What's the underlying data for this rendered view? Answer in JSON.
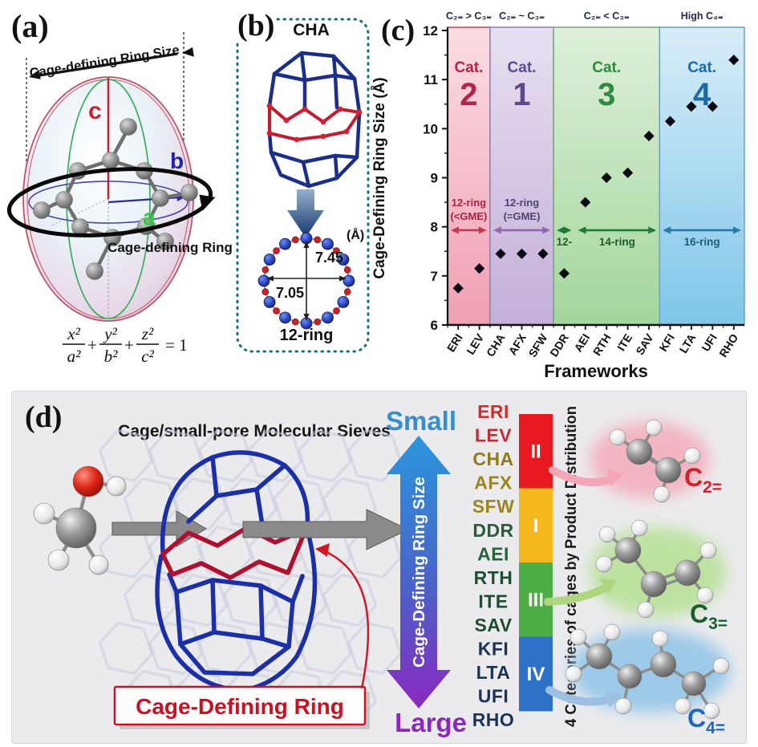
{
  "panel_a": {
    "label": "(a)",
    "size_caption": "Cage-defining Ring Size",
    "ring_caption": "Cage-defining Ring",
    "axis_a": "a",
    "axis_b": "b",
    "axis_c": "c",
    "equation": {
      "f1n": "x²",
      "f1d": "a²",
      "plus1": "+",
      "f2n": "y²",
      "f2d": "b²",
      "plus2": "+",
      "f3n": "z²",
      "f3d": "c²",
      "rhs": "= 1"
    }
  },
  "panel_b": {
    "label": "(b)",
    "cage_name": "CHA",
    "unit": "(Å)",
    "vertical_size": "7.45",
    "horizontal_size": "7.05",
    "ring_caption": "12-ring"
  },
  "panel_c": {
    "label": "(c)"
  },
  "chart_data": {
    "type": "scatter",
    "marker": "diamond",
    "xlabel": "Frameworks",
    "ylabel": "Cage-Defining Ring Size (Å)",
    "ylim": [
      6,
      12
    ],
    "ytick_step": 1,
    "categories": [
      "ERI",
      "LEV",
      "CHA",
      "AFX",
      "SFW",
      "DDR",
      "AEI",
      "RTH",
      "ITE",
      "SAV",
      "KFI",
      "LTA",
      "UFI",
      "RHO"
    ],
    "values": [
      6.75,
      7.15,
      7.45,
      7.45,
      7.45,
      7.05,
      8.5,
      9.0,
      9.1,
      9.85,
      10.15,
      10.45,
      10.45,
      11.4
    ],
    "bands": [
      {
        "cats": [
          0,
          2
        ],
        "condition": "C₂₌ > C₃₌",
        "cat_word": "Cat.",
        "cat_num": "2",
        "label_color": "#b52347",
        "fill_top": "#fbdde3",
        "fill_bottom": "#f09fb2",
        "border": "#c04868"
      },
      {
        "cats": [
          2,
          5
        ],
        "condition": "C₂₌ ~ C₃₌",
        "cat_word": "Cat.",
        "cat_num": "1",
        "label_color": "#5c4a8e",
        "fill_top": "#e7e0f1",
        "fill_bottom": "#c4afd8",
        "border": "#9383b2"
      },
      {
        "cats": [
          5,
          10
        ],
        "condition": "C₂₌ < C₃₌",
        "cat_word": "Cat.",
        "cat_num": "3",
        "label_color": "#2e8b3f",
        "fill_top": "#def0da",
        "fill_bottom": "#a2d69c",
        "border": "#78ab7c"
      },
      {
        "cats": [
          10,
          14
        ],
        "condition": "High C₄₌",
        "cat_word": "Cat.",
        "cat_num": "4",
        "label_color": "#1b6aab",
        "fill_top": "#d7edf8",
        "fill_bottom": "#7fc6e9",
        "border": "#72a2c2"
      }
    ],
    "ring_spans": [
      {
        "text": "12-ring",
        "text2": "(<GME)",
        "cats": [
          0,
          2
        ],
        "arrow_color": "#c23a55",
        "text_color": "#a82340",
        "label_side": "above"
      },
      {
        "text": "12-ring",
        "text2": "(=GME)",
        "cats": [
          2,
          5
        ],
        "arrow_color": "#8f6ab0",
        "text_color": "#4a4470",
        "label_side": "above"
      },
      {
        "text": "12-",
        "cats": [
          5,
          6
        ],
        "arrow_color": "#1f7a38",
        "text_color": "#1d5c2c",
        "label_side": "below"
      },
      {
        "text": "14-ring",
        "cats": [
          6,
          10
        ],
        "arrow_color": "#1f7a38",
        "text_color": "#1d5c2c",
        "label_side": "below"
      },
      {
        "text": "16-ring",
        "cats": [
          10,
          14
        ],
        "arrow_color": "#2979a8",
        "text_color": "#1b5c80",
        "label_side": "below"
      }
    ],
    "ring_arrow_y_value": 7.93
  },
  "panel_d": {
    "label": "(d)",
    "title": "Cage/small-pore Molecular Sieves",
    "small_label": "Small",
    "large_label": "Large",
    "axis_arrow_label": "Cage-Defining Ring Size",
    "ring_box_label": "Cage-Defining Ring",
    "rotated_caption": "4 Categories of cages by Product Distribution",
    "small_color": "#3390cc",
    "large_color": "#8a28c0",
    "frameworks": [
      {
        "name": "ERI",
        "color": "#d62a2a"
      },
      {
        "name": "LEV",
        "color": "#c32b38"
      },
      {
        "name": "CHA",
        "color": "#8f7a1c"
      },
      {
        "name": "AFX",
        "color": "#9a851f"
      },
      {
        "name": "SFW",
        "color": "#9a851f"
      },
      {
        "name": "DDR",
        "color": "#2a5a40"
      },
      {
        "name": "AEI",
        "color": "#27633a"
      },
      {
        "name": "RTH",
        "color": "#1f4d33"
      },
      {
        "name": "ITE",
        "color": "#1f4d33"
      },
      {
        "name": "SAV",
        "color": "#1f4d33"
      },
      {
        "name": "KFI",
        "color": "#1d3354"
      },
      {
        "name": "LTA",
        "color": "#1d3354"
      },
      {
        "name": "UFI",
        "color": "#1d3354"
      },
      {
        "name": "RHO",
        "color": "#1d3354"
      }
    ],
    "bar_segments": [
      {
        "numeral": "II",
        "color": "#e8191f"
      },
      {
        "numeral": "I",
        "color": "#f5b81e"
      },
      {
        "numeral": "III",
        "color": "#4cae44"
      },
      {
        "numeral": "IV",
        "color": "#2d72c8"
      }
    ],
    "products": [
      {
        "base": "C",
        "sub": "2=",
        "color": "#d41f2c"
      },
      {
        "base": "C",
        "sub": "3=",
        "color": "#1d5c30"
      },
      {
        "base": "C",
        "sub": "4=",
        "color": "#1f66c0"
      }
    ]
  }
}
